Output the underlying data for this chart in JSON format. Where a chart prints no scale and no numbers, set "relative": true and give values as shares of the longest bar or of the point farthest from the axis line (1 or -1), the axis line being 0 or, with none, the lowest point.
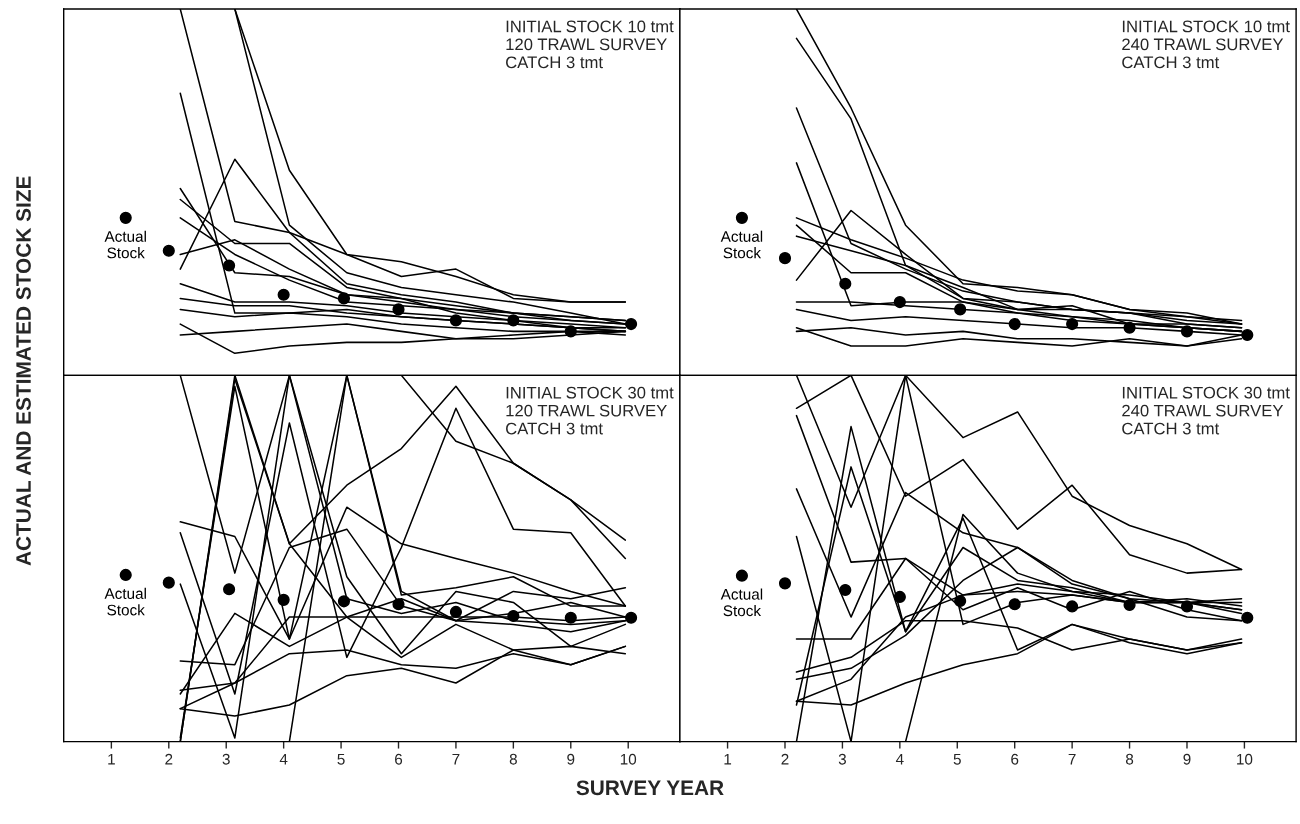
{
  "chart_data": [
    {
      "type": "line",
      "relative": true,
      "ylabel": "ACTUAL AND ESTIMATED STOCK SIZE",
      "x": [
        2.2,
        3.15,
        4.1,
        5.1,
        6.05,
        7,
        8,
        9,
        9.95
      ],
      "xlim": [
        0.17,
        10.9
      ],
      "xticks": [
        1,
        2,
        3,
        4,
        5,
        6,
        7,
        8,
        9,
        10
      ],
      "tick_labels": false,
      "grid": false,
      "legend": false,
      "annotations": [
        "INITIAL STOCK 10 tmt\n120 TRAWL SURVEY\nCATCH 3 tmt"
      ],
      "series": [
        {
          "type": "scatter",
          "name": "Actual\nStock",
          "color": "#000000",
          "marker": "circle",
          "x": [
            1.25,
            2,
            3.05,
            4,
            5.05,
            6,
            7,
            8,
            9,
            10.05
          ],
          "values": [
            0.43,
            0.34,
            0.3,
            0.22,
            0.21,
            0.18,
            0.15,
            0.15,
            0.12,
            0.14
          ]
        },
        {
          "color": "#000000",
          "values": [
            1.0,
            0.42,
            0.39,
            0.33,
            0.31,
            0.27,
            0.22,
            0.2,
            0.2
          ]
        },
        {
          "color": "#000000",
          "values": [
            null,
            1.0,
            0.56,
            0.33,
            0.27,
            0.29,
            0.21,
            0.2,
            0.2
          ]
        },
        {
          "color": "#000000",
          "values": [
            null,
            1.0,
            0.41,
            0.28,
            0.24,
            0.22,
            0.2,
            0.17,
            0.14
          ]
        },
        {
          "color": "#000000",
          "values": [
            0.77,
            0.17,
            0.17,
            0.18,
            0.16,
            0.15,
            0.14,
            0.13,
            0.12
          ]
        },
        {
          "color": "#000000",
          "values": [
            0.29,
            0.59,
            0.39,
            0.25,
            0.22,
            0.2,
            0.17,
            0.16,
            0.15
          ]
        },
        {
          "color": "#000000",
          "values": [
            0.51,
            0.28,
            0.27,
            0.22,
            0.2,
            0.18,
            0.16,
            0.15,
            0.14
          ]
        },
        {
          "color": "#000000",
          "values": [
            0.48,
            0.36,
            0.36,
            0.24,
            0.21,
            0.19,
            0.17,
            0.16,
            0.15
          ]
        },
        {
          "color": "#000000",
          "values": [
            0.43,
            0.33,
            0.26,
            0.2,
            0.19,
            0.18,
            0.17,
            0.15,
            0.14
          ]
        },
        {
          "color": "#000000",
          "values": [
            0.33,
            0.37,
            0.29,
            0.22,
            0.21,
            0.17,
            0.15,
            0.14,
            0.13
          ]
        },
        {
          "color": "#000000",
          "values": [
            0.25,
            0.2,
            0.2,
            0.19,
            0.17,
            0.16,
            0.15,
            0.13,
            0.13
          ]
        },
        {
          "color": "#000000",
          "values": [
            0.21,
            0.19,
            0.19,
            0.17,
            0.16,
            0.15,
            0.14,
            0.13,
            0.12
          ]
        },
        {
          "color": "#000000",
          "values": [
            0.18,
            0.16,
            0.17,
            0.16,
            0.14,
            0.13,
            0.12,
            0.12,
            0.11
          ]
        },
        {
          "color": "#000000",
          "values": [
            0.14,
            0.06,
            0.08,
            0.09,
            0.09,
            0.1,
            0.11,
            0.12,
            0.12
          ]
        },
        {
          "color": "#000000",
          "values": [
            0.11,
            0.12,
            0.13,
            0.14,
            0.12,
            0.1,
            0.1,
            0.11,
            0.12
          ]
        }
      ]
    },
    {
      "type": "line",
      "relative": true,
      "x": [
        2.2,
        3.15,
        4.1,
        5.1,
        6.05,
        7,
        8,
        9,
        9.95
      ],
      "xlim": [
        0.17,
        10.9
      ],
      "xticks": [
        1,
        2,
        3,
        4,
        5,
        6,
        7,
        8,
        9,
        10
      ],
      "tick_labels": false,
      "grid": false,
      "legend": false,
      "annotations": [
        "INITIAL STOCK 10 tmt\n240 TRAWL SURVEY\nCATCH 3 tmt"
      ],
      "series": [
        {
          "type": "scatter",
          "name": "Actual\nStock",
          "color": "#000000",
          "marker": "circle",
          "x": [
            1.25,
            2,
            3.05,
            4,
            5.05,
            6,
            7,
            8,
            9,
            10.05
          ],
          "values": [
            0.43,
            0.32,
            0.25,
            0.2,
            0.18,
            0.14,
            0.14,
            0.13,
            0.12,
            0.11
          ]
        },
        {
          "color": "#000000",
          "values": [
            1.0,
            0.73,
            0.41,
            0.25,
            0.24,
            0.22,
            0.18,
            0.16,
            0.15
          ]
        },
        {
          "color": "#000000",
          "values": [
            0.92,
            0.7,
            0.3,
            0.21,
            0.2,
            0.18,
            0.17,
            0.15,
            0.14
          ]
        },
        {
          "color": "#000000",
          "values": [
            0.73,
            0.36,
            0.29,
            0.23,
            0.2,
            0.18,
            0.17,
            0.16,
            0.14
          ]
        },
        {
          "color": "#000000",
          "values": [
            0.58,
            0.19,
            0.2,
            0.2,
            0.17,
            0.16,
            0.15,
            0.13,
            0.12
          ]
        },
        {
          "color": "#000000",
          "values": [
            0.26,
            0.45,
            0.33,
            0.21,
            0.18,
            0.16,
            0.14,
            0.13,
            0.12
          ]
        },
        {
          "color": "#000000",
          "values": [
            0.43,
            0.37,
            0.32,
            0.26,
            0.23,
            0.22,
            0.18,
            0.17,
            0.14
          ]
        },
        {
          "color": "#000000",
          "values": [
            0.41,
            0.28,
            0.28,
            0.2,
            0.18,
            0.18,
            0.17,
            0.14,
            0.13
          ]
        },
        {
          "color": "#000000",
          "values": [
            0.38,
            0.34,
            0.3,
            0.24,
            0.18,
            0.19,
            0.14,
            0.14,
            0.13
          ]
        },
        {
          "color": "#000000",
          "values": [
            0.2,
            0.2,
            0.19,
            0.18,
            0.17,
            0.15,
            0.14,
            0.13,
            0.12
          ]
        },
        {
          "color": "#000000",
          "values": [
            0.18,
            0.15,
            0.16,
            0.15,
            0.14,
            0.13,
            0.13,
            0.12,
            0.11
          ]
        },
        {
          "color": "#000000",
          "values": [
            0.13,
            0.08,
            0.08,
            0.1,
            0.09,
            0.08,
            0.1,
            0.08,
            0.11
          ]
        },
        {
          "color": "#000000",
          "values": [
            0.12,
            0.13,
            0.11,
            0.12,
            0.1,
            0.1,
            0.09,
            0.08,
            0.1
          ]
        }
      ]
    },
    {
      "type": "line",
      "relative": true,
      "xlabel": "SURVEY YEAR",
      "x": [
        2.2,
        3.15,
        4.1,
        5.1,
        6.05,
        7,
        8,
        9,
        9.95
      ],
      "xlim": [
        0.17,
        10.9
      ],
      "xticks": [
        1,
        2,
        3,
        4,
        5,
        6,
        7,
        8,
        9,
        10
      ],
      "tick_labels": "x",
      "grid": false,
      "legend": false,
      "annotations": [
        "INITIAL STOCK 30 tmt\n120 TRAWL SURVEY\nCATCH 3 tmt"
      ],
      "series": [
        {
          "type": "scatter",
          "name": "Actual\nStock",
          "color": "#000000",
          "marker": "circle",
          "x": [
            1.25,
            2,
            3.05,
            4,
            5.05,
            6,
            7,
            8,
            9,
            10.05
          ],
          "values": [
            0.455,
            0.434,
            0.416,
            0.387,
            0.383,
            0.375,
            0.354,
            0.343,
            0.338,
            0.338
          ]
        },
        {
          "color": "#000000",
          "values": [
            0.0,
            1.0,
            0.54,
            0.7,
            0.8,
            0.97,
            0.76,
            0.66,
            0.5
          ]
        },
        {
          "color": "#000000",
          "values": [
            1.0,
            0.46,
            1.0,
            0.39,
            0.35,
            0.38,
            0.33,
            0.32,
            0.33
          ]
        },
        {
          "color": "#000000",
          "values": [
            0.01,
            0.97,
            0.28,
            1.0,
            0.41,
            0.33,
            0.35,
            0.38,
            0.34
          ]
        },
        {
          "color": "#000000",
          "values": [
            0.57,
            0.13,
            0.87,
            0.23,
            0.53,
            0.91,
            0.58,
            0.57,
            0.37
          ]
        },
        {
          "color": "#000000",
          "values": [
            0.6,
            0.56,
            0.28,
            0.64,
            0.54,
            0.5,
            0.46,
            0.41,
            0.37
          ]
        },
        {
          "color": "#000000",
          "values": [
            0.43,
            0.01,
            1.0,
            0.45,
            0.24,
            0.41,
            0.38,
            0.26,
            0.32
          ]
        },
        {
          "color": "#000000",
          "values": [
            null,
            null,
            null,
            null,
            1.0,
            0.82,
            0.76,
            0.66,
            0.55
          ]
        },
        {
          "color": "#000000",
          "values": [
            0.22,
            0.21,
            0.53,
            0.58,
            0.37,
            0.33,
            0.32,
            0.3,
            0.33
          ]
        },
        {
          "color": "#000000",
          "values": [
            0.14,
            0.16,
            0.24,
            0.25,
            0.21,
            0.2,
            0.24,
            0.21,
            0.26
          ]
        },
        {
          "color": "#000000",
          "values": [
            0.09,
            0.07,
            0.1,
            0.18,
            0.2,
            0.16,
            0.25,
            0.26,
            0.24
          ]
        },
        {
          "color": "#000000",
          "values": [
            0.13,
            0.35,
            0.26,
            0.34,
            0.39,
            0.33,
            0.41,
            0.39,
            0.42
          ]
        },
        {
          "color": "#000000",
          "values": [
            0.09,
            0.16,
            0.34,
            0.34,
            0.34,
            0.34,
            0.34,
            0.33,
            0.34
          ]
        },
        {
          "color": "#000000",
          "values": [
            0.0,
            0.99,
            0.54,
            0.34,
            0.23,
            0.32,
            0.25,
            0.21,
            0.26
          ]
        },
        {
          "color": "#000000",
          "values": [
            null,
            null,
            0.0,
            1.0,
            0.4,
            0.42,
            0.45,
            0.37,
            0.37
          ]
        }
      ]
    },
    {
      "type": "line",
      "relative": true,
      "x": [
        2.2,
        3.15,
        4.1,
        5.1,
        6.05,
        7,
        8,
        9,
        9.95
      ],
      "xlim": [
        0.17,
        10.9
      ],
      "xticks": [
        1,
        2,
        3,
        4,
        5,
        6,
        7,
        8,
        9,
        10
      ],
      "tick_labels": "x",
      "grid": false,
      "legend": false,
      "annotations": [
        "INITIAL STOCK 30 tmt\n240 TRAWL SURVEY\nCATCH 3 tmt"
      ],
      "series": [
        {
          "type": "scatter",
          "name": "Actual\nStock",
          "color": "#000000",
          "marker": "circle",
          "x": [
            1.25,
            2,
            3.05,
            4,
            5.05,
            6,
            7,
            8,
            9,
            10.05
          ],
          "values": [
            0.453,
            0.432,
            0.414,
            0.395,
            0.384,
            0.375,
            0.369,
            0.373,
            0.369,
            0.338
          ]
        },
        {
          "color": "#000000",
          "values": [
            1.0,
            0.64,
            1.0,
            0.83,
            0.9,
            0.67,
            0.59,
            0.54,
            0.47
          ]
        },
        {
          "color": "#000000",
          "values": [
            0.91,
            1.0,
            0.67,
            0.77,
            0.58,
            0.7,
            0.51,
            0.46,
            0.47
          ]
        },
        {
          "color": "#000000",
          "values": [
            0.0,
            0.86,
            0.3,
            0.53,
            0.44,
            0.42,
            0.38,
            0.38,
            0.36
          ]
        },
        {
          "color": "#000000",
          "values": [
            0.1,
            0.75,
            0.3,
            0.61,
            0.25,
            0.32,
            0.28,
            0.25,
            0.27
          ]
        },
        {
          "color": "#000000",
          "values": [
            0.69,
            0.34,
            0.68,
            0.57,
            0.53,
            0.44,
            0.39,
            0.34,
            0.33
          ]
        },
        {
          "color": "#000000",
          "values": [
            0.56,
            0.0,
            1.0,
            0.32,
            0.38,
            0.4,
            0.38,
            0.39,
            0.37
          ]
        },
        {
          "color": "#000000",
          "values": [
            0.28,
            0.28,
            0.5,
            0.36,
            0.42,
            0.36,
            0.41,
            0.36,
            0.33
          ]
        },
        {
          "color": "#000000",
          "values": [
            0.19,
            0.23,
            0.33,
            0.33,
            0.31,
            0.25,
            0.28,
            0.25,
            0.28
          ]
        },
        {
          "color": "#000000",
          "values": [
            0.17,
            0.2,
            0.29,
            0.44,
            0.53,
            0.43,
            0.39,
            0.38,
            0.39
          ]
        },
        {
          "color": "#000000",
          "values": [
            0.11,
            0.1,
            0.16,
            0.21,
            0.24,
            0.32,
            0.27,
            0.24,
            0.27
          ]
        },
        {
          "color": "#000000",
          "values": [
            null,
            null,
            0.0,
            0.62,
            0.46,
            0.41,
            0.4,
            0.38,
            0.36
          ]
        },
        {
          "color": "#000000",
          "values": [
            0.11,
            0.17,
            0.34,
            0.4,
            0.41,
            0.4,
            0.38,
            0.38,
            0.38
          ]
        },
        {
          "color": "#000000",
          "values": [
            0.89,
            0.49,
            0.5,
            0.4,
            0.43,
            0.41,
            0.38,
            0.38,
            0.35
          ]
        }
      ]
    }
  ]
}
